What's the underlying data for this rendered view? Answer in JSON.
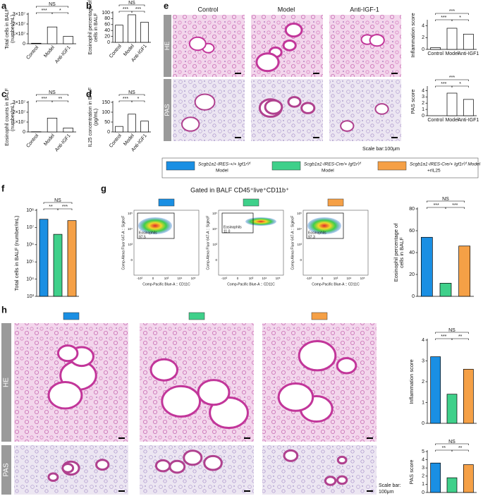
{
  "panel_labels": [
    "a",
    "b",
    "c",
    "d",
    "e",
    "f",
    "g",
    "h"
  ],
  "e_images": {
    "columns": [
      "Control",
      "Model",
      "Anti-IGF-1"
    ],
    "rows": [
      "HE",
      "PAS"
    ],
    "scale_bar": "Scale bar:100μm"
  },
  "legend": [
    {
      "color": "#1a8fe3",
      "lines": [
        "Scgb1a1-IRES-+/+ Igf1rᶠ/ᶠ",
        "Model"
      ]
    },
    {
      "color": "#3fd08a",
      "lines": [
        "Scgb1a1-IRES-Cre/+ Igf1rᶠ/ᶠ",
        "Model"
      ]
    },
    {
      "color": "#f5a046",
      "lines": [
        "Scgb1a1-IRES-Cre/+ Igf1rᶠ/ᶠ Model",
        "+rIL25"
      ]
    }
  ],
  "g_flow": {
    "title": "Gated in BALF CD45⁺live⁺CD11b⁺",
    "y_label": "Comp-Alexa Fluor 647-A :: SiglecF",
    "x_label": "Comp-Pacific Blue-A :: CD11C",
    "gate": "Eosinophils",
    "percents": [
      "97.5",
      "11.0",
      "97.3"
    ],
    "yticks": [
      "10⁵",
      "10⁴",
      "10³",
      "0"
    ],
    "xticks": [
      "-10³",
      "0",
      "10³",
      "10⁴",
      "10⁵"
    ]
  },
  "h_images": {
    "rows": [
      "HE",
      "PAS"
    ],
    "scale_bar": [
      "Scale bar:",
      "100μm"
    ]
  },
  "chart_data": [
    {
      "type": "bar",
      "ylabel": [
        "Total cells in BALF",
        "(number/mL)"
      ],
      "categories": [
        "Control",
        "Model",
        "Anti-IGF1"
      ],
      "values": [
        500000,
        17000000,
        7500000
      ],
      "colors": [
        "#ffffff",
        "#ffffff",
        "#ffffff"
      ],
      "ylim": [
        0,
        30000000
      ],
      "yticks": [
        0,
        {
          "value": 10000000,
          "label": "1×10⁷"
        },
        {
          "value": 20000000,
          "label": "2×10⁷"
        },
        {
          "value": 30000000,
          "label": "3×10⁷"
        }
      ],
      "comparisons": [
        {
          "label": "***",
          "pair": [
            0,
            1
          ]
        },
        {
          "label": "*",
          "pair": [
            1,
            2
          ]
        },
        {
          "label": "NS",
          "pair": [
            0,
            2
          ]
        }
      ]
    },
    {
      "type": "bar",
      "ylabel": [
        "Eosinophil percentage of",
        "cells in BALF"
      ],
      "categories": [
        "Control",
        "Model",
        "Anti-IGF1"
      ],
      "values": [
        58,
        93,
        68
      ],
      "colors": [
        "#ffffff",
        "#ffffff",
        "#ffffff"
      ],
      "ylim": [
        0,
        100
      ],
      "yticks": [
        0,
        20,
        40,
        60,
        80,
        100
      ],
      "comparisons": [
        {
          "label": "***",
          "pair": [
            0,
            1
          ]
        },
        {
          "label": "***",
          "pair": [
            1,
            2
          ]
        },
        {
          "label": "NS",
          "pair": [
            0,
            2
          ]
        }
      ]
    },
    {
      "type": "bar",
      "ylabel": [
        "Eosinophil counts in BALF",
        "(number/mL)"
      ],
      "categories": [
        "Control",
        "Model",
        "Anti-IGF1"
      ],
      "values": [
        200000,
        14000000,
        4000000
      ],
      "colors": [
        "#ffffff",
        "#ffffff",
        "#ffffff"
      ],
      "ylim": [
        0,
        30000000
      ],
      "yticks": [
        0,
        {
          "value": 10000000,
          "label": "1×10⁷"
        },
        {
          "value": 20000000,
          "label": "2×10⁷"
        },
        {
          "value": 30000000,
          "label": "3×10⁷"
        }
      ],
      "comparisons": [
        {
          "label": "***",
          "pair": [
            0,
            1
          ]
        },
        {
          "label": "**",
          "pair": [
            1,
            2
          ]
        },
        {
          "label": "NS",
          "pair": [
            0,
            2
          ]
        }
      ]
    },
    {
      "type": "bar",
      "ylabel": [
        "IL25 concentration in BALF",
        "(pg/mL)"
      ],
      "categories": [
        "Control",
        "Model",
        "Anti-IGF1"
      ],
      "values": [
        28,
        90,
        55
      ],
      "colors": [
        "#ffffff",
        "#ffffff",
        "#ffffff"
      ],
      "ylim": [
        0,
        150
      ],
      "yticks": [
        0,
        50,
        100,
        150
      ],
      "comparisons": [
        {
          "label": "***",
          "pair": [
            0,
            1
          ]
        },
        {
          "label": "*",
          "pair": [
            1,
            2
          ]
        },
        {
          "label": "NS",
          "pair": [
            0,
            2
          ]
        }
      ]
    },
    {
      "type": "bar",
      "ylabel": [
        "Inflammation score"
      ],
      "categories": [
        "Control",
        "Model",
        "Anti-IGF1"
      ],
      "values": [
        0.3,
        3.6,
        2.6
      ],
      "colors": [
        "#ffffff",
        "#ffffff",
        "#ffffff"
      ],
      "ylim": [
        0,
        4.8
      ],
      "yticks": [
        0,
        2,
        4
      ],
      "comparisons": [
        {
          "label": "***",
          "pair": [
            0,
            1
          ]
        },
        {
          "label": "*",
          "pair": [
            1,
            2
          ]
        },
        {
          "label": "***",
          "pair": [
            0,
            2
          ]
        }
      ]
    },
    {
      "type": "bar",
      "ylabel": [
        "PAS score"
      ],
      "categories": [
        "Control",
        "Model",
        "Anti-IGF1"
      ],
      "values": [
        0,
        3.6,
        2.6
      ],
      "colors": [
        "#ffffff",
        "#ffffff",
        "#ffffff"
      ],
      "ylim": [
        0,
        4.5
      ],
      "yticks": [
        0,
        1,
        2,
        3,
        4
      ],
      "comparisons": [
        {
          "label": "***",
          "pair": [
            0,
            1
          ]
        },
        {
          "label": "*",
          "pair": [
            1,
            2
          ]
        },
        {
          "label": "***",
          "pair": [
            0,
            2
          ]
        }
      ]
    },
    {
      "type": "bar",
      "log": true,
      "ylabel": [
        "Total cells in BALF (number/mL)"
      ],
      "categories": [
        null,
        null,
        null
      ],
      "values": [
        30000000,
        4000000,
        25000000
      ],
      "colors": [
        "#1a8fe3",
        "#3fd08a",
        "#f5a046"
      ],
      "ylim": [
        1000,
        100000000
      ],
      "yticks": [
        {
          "value": 1000,
          "label": "10³"
        },
        {
          "value": 10000,
          "label": "10⁴"
        },
        {
          "value": 100000,
          "label": "10⁵"
        },
        {
          "value": 1000000,
          "label": "10⁶"
        },
        {
          "value": 10000000,
          "label": "10⁷"
        },
        {
          "value": 100000000,
          "label": "10⁸"
        }
      ],
      "comparisons": [
        {
          "label": "**",
          "pair": [
            0,
            1
          ]
        },
        {
          "label": "***",
          "pair": [
            1,
            2
          ]
        },
        {
          "label": "NS",
          "pair": [
            0,
            2
          ]
        }
      ]
    },
    {
      "type": "bar",
      "ylabel": [
        "Eosinophil percentage of",
        "cells in BALF"
      ],
      "categories": [
        null,
        null,
        null
      ],
      "values": [
        54,
        12,
        46
      ],
      "colors": [
        "#1a8fe3",
        "#3fd08a",
        "#f5a046"
      ],
      "ylim": [
        0,
        80
      ],
      "yticks": [
        0,
        20,
        40,
        60,
        80
      ],
      "comparisons": [
        {
          "label": "***",
          "pair": [
            0,
            1
          ]
        },
        {
          "label": "***",
          "pair": [
            1,
            2
          ]
        },
        {
          "label": "NS",
          "pair": [
            0,
            2
          ]
        }
      ]
    },
    {
      "type": "bar",
      "ylabel": [
        "Inflammation score"
      ],
      "categories": [
        null,
        null,
        null
      ],
      "values": [
        3.2,
        1.4,
        2.6
      ],
      "colors": [
        "#1a8fe3",
        "#3fd08a",
        "#f5a046"
      ],
      "ylim": [
        0,
        4
      ],
      "yticks": [
        0,
        1,
        2,
        3,
        4
      ],
      "comparisons": [
        {
          "label": "***",
          "pair": [
            0,
            1
          ]
        },
        {
          "label": "**",
          "pair": [
            1,
            2
          ]
        },
        {
          "label": "NS",
          "pair": [
            0,
            2
          ]
        }
      ]
    },
    {
      "type": "bar",
      "ylabel": [
        "PAS  score"
      ],
      "categories": [
        null,
        null,
        null
      ],
      "values": [
        3.6,
        1.8,
        3.4
      ],
      "colors": [
        "#1a8fe3",
        "#3fd08a",
        "#f5a046"
      ],
      "ylim": [
        0,
        5
      ],
      "yticks": [
        0,
        1,
        2,
        3,
        4,
        5
      ],
      "comparisons": [
        {
          "label": "**",
          "pair": [
            0,
            1
          ]
        },
        {
          "label": "**",
          "pair": [
            1,
            2
          ]
        },
        {
          "label": "NS",
          "pair": [
            0,
            2
          ]
        }
      ]
    }
  ]
}
